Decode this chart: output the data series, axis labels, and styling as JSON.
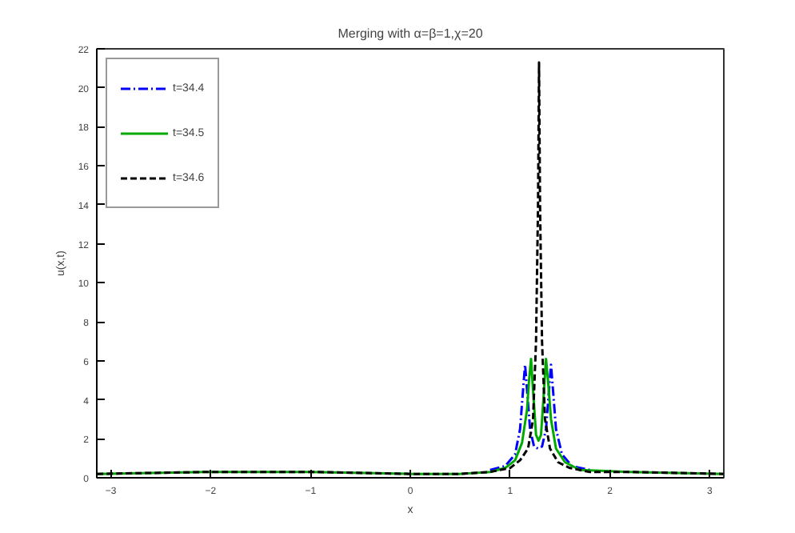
{
  "chart_data": {
    "type": "line",
    "title": "Merging with α=β=1,χ=20",
    "xlabel": "x",
    "ylabel": "u(x,t)",
    "xlim": [
      -3.1416,
      3.1416
    ],
    "ylim": [
      0,
      22
    ],
    "xticks": [
      -3,
      -2,
      -1,
      0,
      1,
      2,
      3
    ],
    "yticks": [
      0,
      2,
      4,
      6,
      8,
      10,
      12,
      14,
      16,
      18,
      20,
      22
    ],
    "grid": false,
    "legend": "top left",
    "series": [
      {
        "name": "t=34.4",
        "color": "#0000ff",
        "line_style": "dashdot",
        "x": [
          0.8,
          0.95,
          1.05,
          1.1,
          1.13,
          1.15,
          1.17,
          1.2,
          1.24,
          1.28,
          1.32,
          1.36,
          1.39,
          1.41,
          1.43,
          1.46,
          1.52,
          1.62,
          1.8
        ],
        "values": [
          0.4,
          0.6,
          1.2,
          2.5,
          4.5,
          5.8,
          4.5,
          2.5,
          1.6,
          1.5,
          1.6,
          2.5,
          4.5,
          5.8,
          4.5,
          2.5,
          1.2,
          0.6,
          0.4
        ]
      },
      {
        "name": "t=34.5",
        "color": "#00aa00",
        "line_style": "solid",
        "x": [
          -3.14,
          -2,
          -1,
          0,
          0.5,
          0.8,
          0.95,
          1.05,
          1.12,
          1.17,
          1.19,
          1.21,
          1.23,
          1.26,
          1.285,
          1.31,
          1.34,
          1.36,
          1.38,
          1.41,
          1.46,
          1.55,
          1.7,
          2.2,
          3.14
        ],
        "values": [
          0.2,
          0.3,
          0.3,
          0.2,
          0.2,
          0.3,
          0.5,
          0.9,
          1.8,
          3.5,
          5.0,
          6.1,
          4.5,
          2.2,
          1.9,
          2.2,
          4.5,
          6.1,
          5.0,
          3.0,
          1.5,
          0.8,
          0.4,
          0.3,
          0.2
        ]
      },
      {
        "name": "t=34.6",
        "color": "#000000",
        "line_style": "dashed",
        "x": [
          -3.14,
          -2,
          -1,
          0,
          0.5,
          0.8,
          1.0,
          1.1,
          1.18,
          1.23,
          1.26,
          1.28,
          1.29,
          1.3,
          1.32,
          1.35,
          1.4,
          1.48,
          1.6,
          1.8,
          2.2,
          3.14
        ],
        "values": [
          0.2,
          0.3,
          0.3,
          0.2,
          0.2,
          0.3,
          0.5,
          0.9,
          1.5,
          3.0,
          7.0,
          14.0,
          21.3,
          14.0,
          7.0,
          3.0,
          1.5,
          0.8,
          0.5,
          0.3,
          0.3,
          0.2
        ]
      }
    ]
  }
}
